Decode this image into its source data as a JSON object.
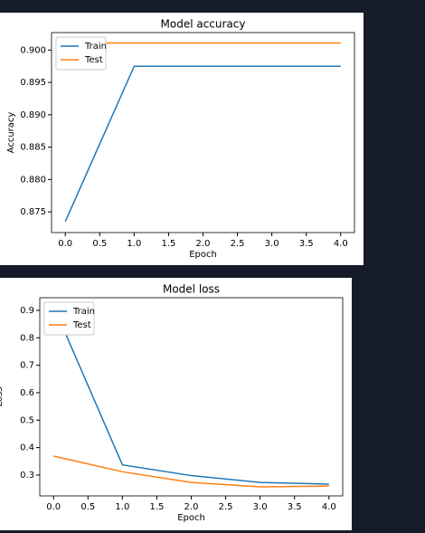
{
  "chart_data": [
    {
      "type": "line",
      "title": "Model accuracy",
      "xlabel": "Epoch",
      "ylabel": "Accuracy",
      "x": [
        0,
        1,
        2,
        3,
        4
      ],
      "series": [
        {
          "name": "Train",
          "color": "#1f77b4",
          "values": [
            0.8735,
            0.8975,
            0.8975,
            0.8975,
            0.8975
          ]
        },
        {
          "name": "Test",
          "color": "#ff7f0e",
          "values": [
            0.9011,
            0.9011,
            0.9011,
            0.9011,
            0.9011
          ]
        }
      ],
      "xlim": [
        -0.2,
        4.2
      ],
      "xticks": [
        {
          "value": 0,
          "label": "0.0"
        },
        0.5,
        {
          "value": 1,
          "label": "1.0"
        },
        1.5,
        {
          "value": 2,
          "label": "2.0"
        },
        2.5,
        {
          "value": 3,
          "label": "3.0"
        },
        3.5,
        {
          "value": 4,
          "label": "4.0"
        }
      ],
      "ylim": [
        0.8718,
        0.9027
      ],
      "yticks": [
        {
          "value": 0.875,
          "label": "0.875"
        },
        {
          "value": 0.88,
          "label": "0.880"
        },
        0.885,
        {
          "value": 0.89,
          "label": "0.890"
        },
        0.895,
        {
          "value": 0.9,
          "label": "0.900"
        }
      ],
      "legend": "upper left"
    },
    {
      "type": "line",
      "title": "Model loss",
      "xlabel": "Epoch",
      "ylabel": "Loss",
      "x": [
        0,
        1,
        2,
        3,
        4
      ],
      "series": [
        {
          "name": "Train",
          "color": "#1f77b4",
          "values": [
            0.916,
            0.337,
            0.298,
            0.273,
            0.267
          ]
        },
        {
          "name": "Test",
          "color": "#ff7f0e",
          "values": [
            0.369,
            0.312,
            0.273,
            0.257,
            0.26
          ]
        }
      ],
      "xlim": [
        -0.2,
        4.2
      ],
      "xticks": [
        {
          "value": 0,
          "label": "0.0"
        },
        0.5,
        {
          "value": 1,
          "label": "1.0"
        },
        1.5,
        {
          "value": 2,
          "label": "2.0"
        },
        2.5,
        {
          "value": 3,
          "label": "3.0"
        },
        3.5,
        {
          "value": 4,
          "label": "4.0"
        }
      ],
      "ylim": [
        0.224,
        0.946
      ],
      "yticks": [
        0.3,
        0.4,
        0.5,
        0.6,
        0.7,
        0.8,
        0.9
      ],
      "legend": "upper left"
    }
  ]
}
